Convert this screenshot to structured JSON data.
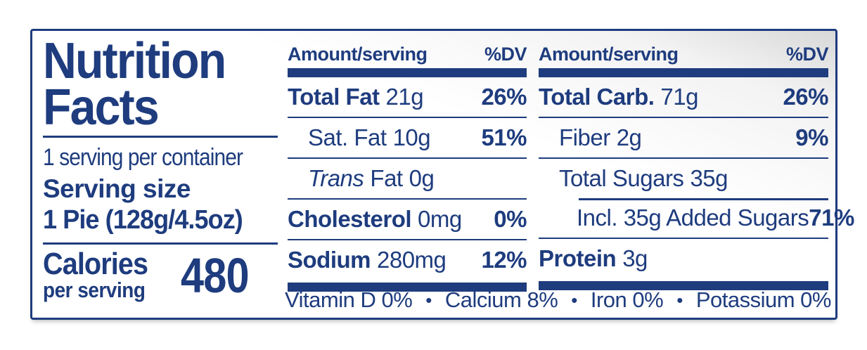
{
  "label": {
    "title_line1": "Nutrition",
    "title_line2": "Facts",
    "servings_per_container": "1 serving per container",
    "serving_size_label": "Serving size",
    "serving_size_value": "1 Pie (128g/4.5oz)",
    "calories_label": "Calories",
    "calories_sublabel": "per serving",
    "calories_value": "480"
  },
  "col1": {
    "header": {
      "amount": "Amount/serving",
      "dv": "%DV"
    },
    "rows": [
      {
        "label": "Total Fat",
        "amount": "21g",
        "dv": "26%"
      },
      {
        "label": "Sat. Fat",
        "amount": "10g",
        "dv": "51%"
      },
      {
        "label": "Trans",
        "label2": "Fat",
        "amount": "0g",
        "dv": ""
      },
      {
        "label": "Cholesterol",
        "amount": "0mg",
        "dv": "0%"
      },
      {
        "label": "Sodium",
        "amount": "280mg",
        "dv": "12%"
      }
    ]
  },
  "col2": {
    "header": {
      "amount": "Amount/serving",
      "dv": "%DV"
    },
    "rows": [
      {
        "label": "Total Carb.",
        "amount": "71g",
        "dv": "26%"
      },
      {
        "label": "Fiber",
        "amount": "2g",
        "dv": "9%"
      },
      {
        "label": "Total Sugars",
        "amount": "35g",
        "dv": ""
      },
      {
        "label": "Incl. 35g Added Sugars",
        "amount": "",
        "dv": "71%"
      },
      {
        "label": "Protein",
        "amount": "3g",
        "dv": ""
      }
    ]
  },
  "vitamins": {
    "separator": "•",
    "items": [
      "Vitamin D 0%",
      "Calcium 8%",
      "Iron 0%",
      "Potassium 0%"
    ]
  },
  "colors": {
    "navy": "#1e3c7e"
  }
}
